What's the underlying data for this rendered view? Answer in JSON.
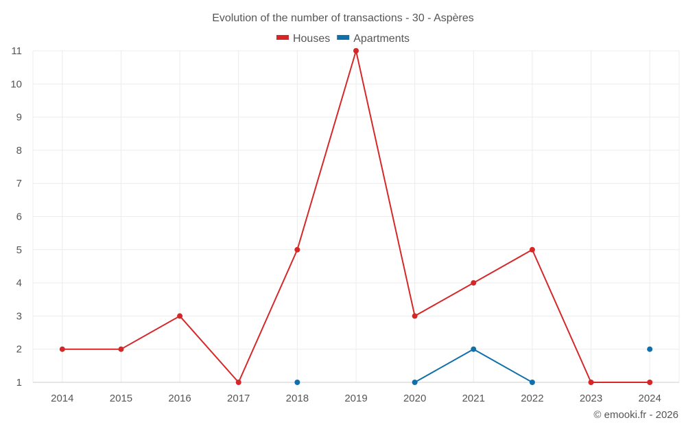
{
  "chart_data": {
    "type": "line",
    "title": "Evolution of the number of transactions - 30 - Aspères",
    "categories": [
      "2014",
      "2015",
      "2016",
      "2017",
      "2018",
      "2019",
      "2020",
      "2021",
      "2022",
      "2023",
      "2024"
    ],
    "ylim": [
      1,
      11
    ],
    "yticks": [
      1,
      2,
      3,
      4,
      5,
      6,
      7,
      8,
      9,
      10,
      11
    ],
    "grid": true,
    "legend_position": "top",
    "series": [
      {
        "name": "Houses",
        "color": "#d62728",
        "values": [
          2,
          2,
          3,
          1,
          5,
          11,
          3,
          4,
          5,
          1,
          1
        ]
      },
      {
        "name": "Apartments",
        "color": "#1170aa",
        "values": [
          null,
          null,
          null,
          null,
          1,
          null,
          1,
          2,
          1,
          null,
          2
        ]
      }
    ]
  },
  "credit": "© emooki.fr - 2026"
}
